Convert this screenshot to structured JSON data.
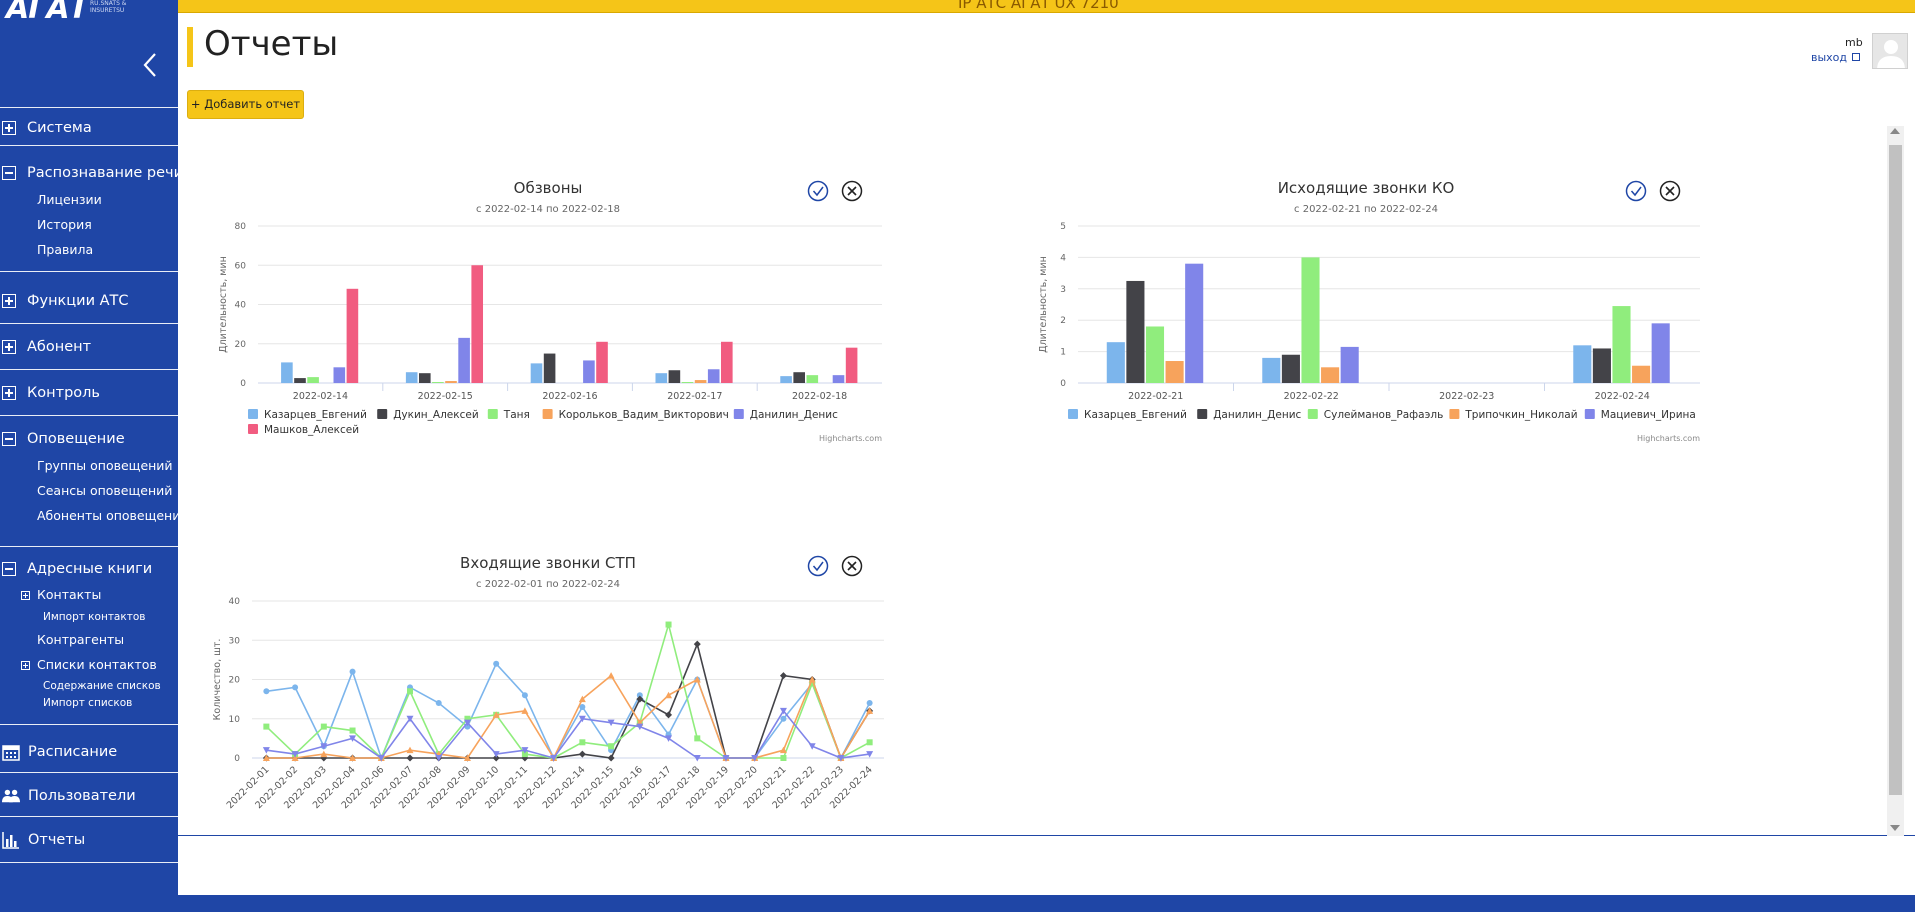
{
  "app": {
    "logo_text": "АГАТ",
    "logo_subtitle": "RU.SNATS & INSURETSU",
    "topbar_title": "IP АТС АГАТ UX 7210"
  },
  "sidebar": {
    "sections": [
      {
        "label": "Система",
        "state": "collapsed"
      },
      {
        "label": "Распознавание речи",
        "state": "expanded",
        "items": [
          "Лицензии",
          "История",
          "Правила"
        ]
      },
      {
        "label": "Функции АТС",
        "state": "collapsed"
      },
      {
        "label": "Абонент",
        "state": "collapsed"
      },
      {
        "label": "Контроль",
        "state": "collapsed"
      },
      {
        "label": "Оповещение",
        "state": "expanded",
        "items": [
          "Группы оповещений",
          "Сеансы оповещений",
          "Абоненты оповещений"
        ]
      },
      {
        "label": "Адресные книги",
        "state": "expanded",
        "items": [
          "Контакты",
          "Импорт контактов",
          "Контрагенты",
          "Списки контактов",
          "Содержание списков",
          "Импорт списков"
        ]
      },
      {
        "label": "Расписание",
        "icon": "calendar-icon"
      },
      {
        "label": "Пользователи",
        "icon": "users-icon"
      },
      {
        "label": "Отчеты",
        "icon": "bar-chart-icon"
      }
    ]
  },
  "header": {
    "title": "Отчеты",
    "user": "mb",
    "logout": "выход",
    "add_report": "+ Добавить отчет"
  },
  "colors": {
    "sidebar": "#1f46a6",
    "accent": "#f5c518",
    "series": [
      "#7cb5ec",
      "#434348",
      "#90ed7d",
      "#f7a35c",
      "#8085e9",
      "#f15c80"
    ]
  },
  "chart_data": [
    {
      "type": "bar",
      "title": "Обзвоны",
      "subtitle": "с 2022-02-14 по 2022-02-18",
      "ylabel": "Длительность, мин",
      "ylim": [
        0,
        80
      ],
      "yticks": [
        0,
        20,
        40,
        60,
        80
      ],
      "categories": [
        "2022-02-14",
        "2022-02-15",
        "2022-02-16",
        "2022-02-17",
        "2022-02-18"
      ],
      "series": [
        {
          "name": "Казарцев_Евгений",
          "values": [
            10.5,
            5.5,
            10,
            5,
            3.5
          ]
        },
        {
          "name": "Дукин_Алексей",
          "values": [
            2.5,
            5,
            15,
            6.5,
            5.5
          ]
        },
        {
          "name": "Таня",
          "values": [
            3,
            0.5,
            0,
            0.5,
            4
          ]
        },
        {
          "name": "Корольков_Вадим_Викторович",
          "values": [
            0,
            1,
            0,
            1.5,
            0
          ]
        },
        {
          "name": "Данилин_Денис",
          "values": [
            8,
            23,
            11.5,
            7,
            4
          ]
        },
        {
          "name": "Машков_Алексей",
          "values": [
            48,
            60,
            21,
            21,
            18
          ]
        }
      ],
      "credits": "Highcharts.com"
    },
    {
      "type": "bar",
      "title": "Исходящие звонки КО",
      "subtitle": "с 2022-02-21 по 2022-02-24",
      "ylabel": "Длительность, мин",
      "ylim": [
        0,
        5
      ],
      "yticks": [
        0,
        1,
        2,
        3,
        4,
        5
      ],
      "categories": [
        "2022-02-21",
        "2022-02-22",
        "2022-02-23",
        "2022-02-24"
      ],
      "series": [
        {
          "name": "Казарцев_Евгений",
          "values": [
            1.3,
            0.8,
            0,
            1.2
          ]
        },
        {
          "name": "Данилин_Денис",
          "values": [
            3.25,
            0.9,
            0,
            1.1
          ]
        },
        {
          "name": "Сулейманов_Рафаэль",
          "values": [
            1.8,
            4,
            0,
            2.45
          ]
        },
        {
          "name": "Трипочкин_Николай",
          "values": [
            0.7,
            0.5,
            0,
            0.55
          ]
        },
        {
          "name": "Мациевич_Ирина",
          "values": [
            3.8,
            1.15,
            0,
            1.9
          ]
        }
      ],
      "credits": "Highcharts.com"
    },
    {
      "type": "line",
      "title": "Входящие звонки СТП",
      "subtitle": "с 2022-02-01 по 2022-02-24",
      "ylabel": "Количество, шт.",
      "ylim": [
        0,
        40
      ],
      "yticks": [
        0,
        10,
        20,
        30,
        40
      ],
      "categories": [
        "2022-02-01",
        "2022-02-02",
        "2022-02-03",
        "2022-02-04",
        "2022-02-06",
        "2022-02-07",
        "2022-02-08",
        "2022-02-09",
        "2022-02-10",
        "2022-02-11",
        "2022-02-12",
        "2022-02-14",
        "2022-02-15",
        "2022-02-16",
        "2022-02-17",
        "2022-02-18",
        "2022-02-19",
        "2022-02-20",
        "2022-02-21",
        "2022-02-22",
        "2022-02-23",
        "2022-02-24"
      ],
      "series": [
        {
          "values": [
            17,
            18,
            3,
            22,
            0,
            18,
            14,
            8,
            24,
            16,
            0,
            13,
            2,
            16,
            6,
            20,
            0,
            0,
            10,
            19,
            0,
            14
          ]
        },
        {
          "values": [
            0,
            0,
            0,
            0,
            0,
            0,
            0,
            0,
            0,
            0,
            0,
            1,
            0,
            15,
            11,
            29,
            0,
            0,
            21,
            20,
            0,
            12
          ]
        },
        {
          "values": [
            8,
            1,
            8,
            7,
            0,
            17,
            1,
            10,
            11,
            1,
            0,
            4,
            3,
            9,
            34,
            5,
            0,
            0,
            0,
            19,
            0,
            4
          ]
        },
        {
          "values": [
            0,
            0,
            1,
            0,
            0,
            2,
            1,
            0,
            11,
            12,
            0,
            15,
            21,
            9,
            16,
            20,
            0,
            0,
            2,
            20,
            0,
            12
          ]
        },
        {
          "values": [
            2,
            1,
            3,
            5,
            0,
            10,
            0,
            9,
            1,
            2,
            0,
            10,
            9,
            8,
            5,
            0,
            0,
            0,
            12,
            3,
            0,
            1
          ]
        }
      ]
    }
  ]
}
